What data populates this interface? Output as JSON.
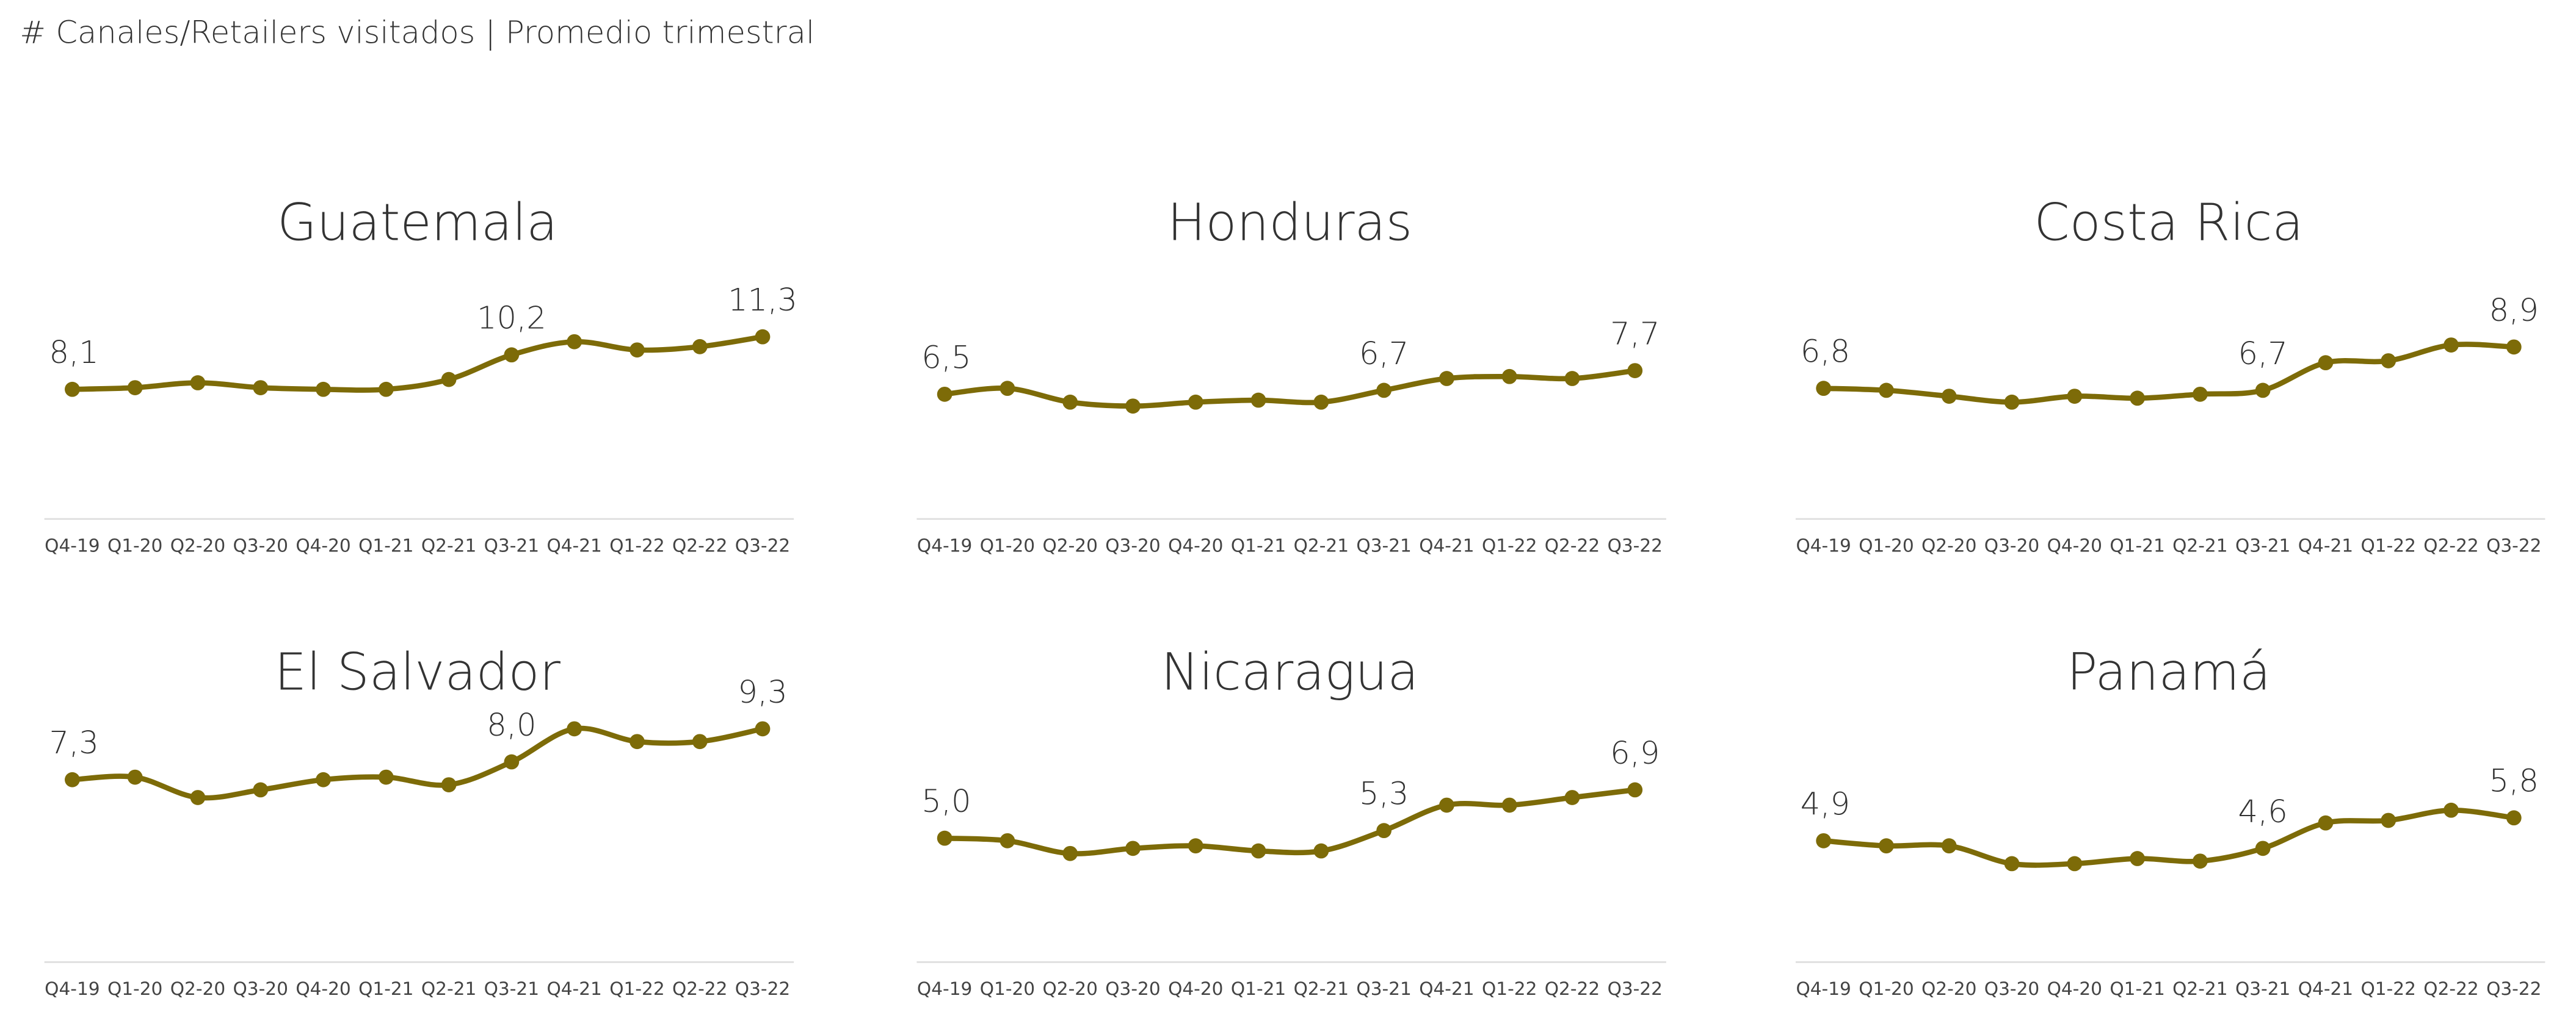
{
  "title": "# Canales/Retailers visitados | Promedio trimestral",
  "chart_data": [
    {
      "type": "line",
      "title": "Guatemala",
      "color": "#7d6b08",
      "ylim": [
        0,
        15
      ],
      "categories": [
        "Q4-19",
        "Q1-20",
        "Q2-20",
        "Q3-20",
        "Q4-20",
        "Q1-21",
        "Q2-21",
        "Q3-21",
        "Q4-21",
        "Q1-22",
        "Q2-22",
        "Q3-22"
      ],
      "values": [
        8.1,
        8.2,
        8.5,
        8.2,
        8.1,
        8.1,
        8.7,
        10.2,
        11.0,
        10.5,
        10.7,
        11.3
      ],
      "value_labels": [
        "8,1",
        null,
        null,
        null,
        null,
        null,
        null,
        "10,2",
        null,
        null,
        null,
        "11,3"
      ]
    },
    {
      "type": "line",
      "title": "Honduras",
      "color": "#7d6b08",
      "ylim": [
        0,
        12.5
      ],
      "categories": [
        "Q4-19",
        "Q1-20",
        "Q2-20",
        "Q3-20",
        "Q4-20",
        "Q1-21",
        "Q2-21",
        "Q3-21",
        "Q4-21",
        "Q1-22",
        "Q2-22",
        "Q3-22"
      ],
      "values": [
        6.5,
        6.8,
        6.1,
        5.9,
        6.1,
        6.2,
        6.1,
        6.7,
        7.3,
        7.4,
        7.3,
        7.7
      ],
      "value_labels": [
        "6,5",
        null,
        null,
        null,
        null,
        null,
        null,
        "6,7",
        null,
        null,
        null,
        "7,7"
      ]
    },
    {
      "type": "line",
      "title": "Costa Rica",
      "color": "#7d6b08",
      "ylim": [
        0,
        12.5
      ],
      "categories": [
        "Q4-19",
        "Q1-20",
        "Q2-20",
        "Q3-20",
        "Q4-20",
        "Q1-21",
        "Q2-21",
        "Q3-21",
        "Q4-21",
        "Q1-22",
        "Q2-22",
        "Q3-22"
      ],
      "values": [
        6.8,
        6.7,
        6.4,
        6.1,
        6.4,
        6.3,
        6.5,
        6.7,
        8.1,
        8.2,
        9.0,
        8.9
      ],
      "value_labels": [
        "6,8",
        null,
        null,
        null,
        null,
        null,
        null,
        "6,7",
        null,
        null,
        null,
        "8,9"
      ]
    },
    {
      "type": "line",
      "title": "El Salvador",
      "color": "#7d6b08",
      "ylim": [
        0,
        10
      ],
      "categories": [
        "Q4-19",
        "Q1-20",
        "Q2-20",
        "Q3-20",
        "Q4-20",
        "Q1-21",
        "Q2-21",
        "Q3-21",
        "Q4-21",
        "Q1-22",
        "Q2-22",
        "Q3-22"
      ],
      "values": [
        7.3,
        7.4,
        6.6,
        6.9,
        7.3,
        7.4,
        7.1,
        8.0,
        9.3,
        8.8,
        8.8,
        9.3
      ],
      "value_labels": [
        "7,3",
        null,
        null,
        null,
        null,
        null,
        null,
        "8,0",
        null,
        null,
        null,
        "9,3"
      ]
    },
    {
      "type": "line",
      "title": "Nicaragua",
      "color": "#7d6b08",
      "ylim": [
        0,
        10
      ],
      "categories": [
        "Q4-19",
        "Q1-20",
        "Q2-20",
        "Q3-20",
        "Q4-20",
        "Q1-21",
        "Q2-21",
        "Q3-21",
        "Q4-21",
        "Q1-22",
        "Q2-22",
        "Q3-22"
      ],
      "values": [
        5.0,
        4.9,
        4.4,
        4.6,
        4.7,
        4.5,
        4.5,
        5.3,
        6.3,
        6.3,
        6.6,
        6.9
      ],
      "value_labels": [
        "5,0",
        null,
        null,
        null,
        null,
        null,
        null,
        "5,3",
        null,
        null,
        null,
        "6,9"
      ]
    },
    {
      "type": "line",
      "title": "Panamá",
      "color": "#7d6b08",
      "ylim": [
        0,
        10
      ],
      "categories": [
        "Q4-19",
        "Q1-20",
        "Q2-20",
        "Q3-20",
        "Q4-20",
        "Q1-21",
        "Q2-21",
        "Q3-21",
        "Q4-21",
        "Q1-22",
        "Q2-22",
        "Q3-22"
      ],
      "values": [
        4.9,
        4.7,
        4.7,
        4.0,
        4.0,
        4.2,
        4.1,
        4.6,
        5.6,
        5.7,
        6.1,
        5.8
      ],
      "value_labels": [
        "4,9",
        null,
        null,
        null,
        null,
        null,
        null,
        "4,6",
        null,
        null,
        null,
        "5,8"
      ]
    }
  ]
}
